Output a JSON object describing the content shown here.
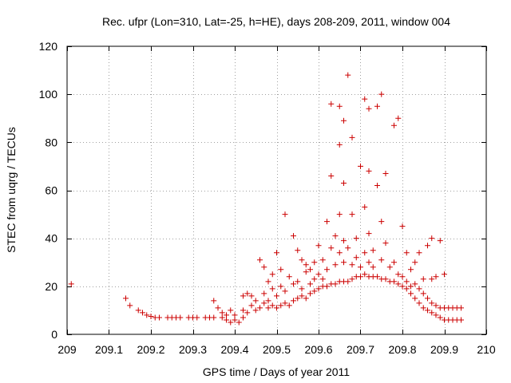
{
  "chart_data": {
    "type": "scatter",
    "title": "Rec. ufpr (Lon=310, Lat=-25, h=HE), days 208-209, 2011, window 004",
    "xlabel": "GPS time / Days of year 2011",
    "ylabel": "STEC from uqrg / TECUs",
    "xlim": [
      209,
      210
    ],
    "ylim": [
      0,
      120
    ],
    "xticks": [
      209,
      209.1,
      209.2,
      209.3,
      209.4,
      209.5,
      209.6,
      209.7,
      209.8,
      209.9,
      210
    ],
    "xtick_labels": [
      "209",
      "209.1",
      "209.2",
      "209.3",
      "209.4",
      "209.5",
      "209.6",
      "209.7",
      "209.8",
      "209.9",
      "210"
    ],
    "yticks": [
      0,
      20,
      40,
      60,
      80,
      100,
      120
    ],
    "ytick_labels": [
      "0",
      "20",
      "40",
      "60",
      "80",
      "100",
      "120"
    ],
    "grid": true,
    "marker": "+",
    "marker_color": "#cc0000",
    "series": [
      {
        "name": "STEC",
        "points": [
          [
            209.01,
            21
          ],
          [
            209.14,
            15
          ],
          [
            209.15,
            12
          ],
          [
            209.17,
            10
          ],
          [
            209.18,
            9
          ],
          [
            209.19,
            8
          ],
          [
            209.2,
            7.5
          ],
          [
            209.21,
            7
          ],
          [
            209.22,
            7
          ],
          [
            209.24,
            7
          ],
          [
            209.25,
            7
          ],
          [
            209.26,
            7
          ],
          [
            209.27,
            7
          ],
          [
            209.29,
            7
          ],
          [
            209.3,
            7
          ],
          [
            209.31,
            7
          ],
          [
            209.33,
            7
          ],
          [
            209.34,
            7
          ],
          [
            209.35,
            7
          ],
          [
            209.35,
            14
          ],
          [
            209.36,
            11
          ],
          [
            209.37,
            9
          ],
          [
            209.37,
            7
          ],
          [
            209.38,
            8
          ],
          [
            209.38,
            6
          ],
          [
            209.39,
            10
          ],
          [
            209.39,
            5
          ],
          [
            209.4,
            8
          ],
          [
            209.4,
            6
          ],
          [
            209.41,
            5
          ],
          [
            209.42,
            7
          ],
          [
            209.42,
            10
          ],
          [
            209.42,
            16
          ],
          [
            209.43,
            9
          ],
          [
            209.43,
            17
          ],
          [
            209.44,
            12
          ],
          [
            209.44,
            16
          ],
          [
            209.45,
            10
          ],
          [
            209.45,
            14
          ],
          [
            209.46,
            11
          ],
          [
            209.46,
            31
          ],
          [
            209.47,
            13
          ],
          [
            209.47,
            17
          ],
          [
            209.47,
            28
          ],
          [
            209.48,
            11
          ],
          [
            209.48,
            22
          ],
          [
            209.48,
            14
          ],
          [
            209.49,
            12
          ],
          [
            209.49,
            19
          ],
          [
            209.49,
            25
          ],
          [
            209.5,
            11
          ],
          [
            209.5,
            16
          ],
          [
            209.5,
            34
          ],
          [
            209.51,
            12
          ],
          [
            209.51,
            20
          ],
          [
            209.51,
            27
          ],
          [
            209.52,
            13
          ],
          [
            209.52,
            18
          ],
          [
            209.52,
            50
          ],
          [
            209.53,
            12
          ],
          [
            209.53,
            24
          ],
          [
            209.54,
            14
          ],
          [
            209.54,
            21
          ],
          [
            209.54,
            41
          ],
          [
            209.55,
            15
          ],
          [
            209.55,
            22
          ],
          [
            209.55,
            35
          ],
          [
            209.56,
            16
          ],
          [
            209.56,
            19
          ],
          [
            209.56,
            31
          ],
          [
            209.57,
            15
          ],
          [
            209.57,
            26
          ],
          [
            209.57,
            29
          ],
          [
            209.58,
            17
          ],
          [
            209.58,
            21
          ],
          [
            209.58,
            27
          ],
          [
            209.59,
            18
          ],
          [
            209.59,
            23
          ],
          [
            209.59,
            30
          ],
          [
            209.6,
            19
          ],
          [
            209.6,
            25
          ],
          [
            209.6,
            37
          ],
          [
            209.61,
            20
          ],
          [
            209.61,
            23
          ],
          [
            209.61,
            31
          ],
          [
            209.62,
            20
          ],
          [
            209.62,
            27
          ],
          [
            209.62,
            47
          ],
          [
            209.63,
            21
          ],
          [
            209.63,
            36
          ],
          [
            209.63,
            66
          ],
          [
            209.63,
            96
          ],
          [
            209.64,
            21
          ],
          [
            209.64,
            29
          ],
          [
            209.64,
            41
          ],
          [
            209.65,
            22
          ],
          [
            209.65,
            34
          ],
          [
            209.65,
            50
          ],
          [
            209.65,
            79
          ],
          [
            209.65,
            95
          ],
          [
            209.66,
            22
          ],
          [
            209.66,
            30
          ],
          [
            209.66,
            39
          ],
          [
            209.66,
            63
          ],
          [
            209.66,
            89
          ],
          [
            209.67,
            108
          ],
          [
            209.67,
            22
          ],
          [
            209.67,
            36
          ],
          [
            209.68,
            23
          ],
          [
            209.68,
            29
          ],
          [
            209.68,
            50
          ],
          [
            209.68,
            82
          ],
          [
            209.69,
            24
          ],
          [
            209.69,
            32
          ],
          [
            209.69,
            40
          ],
          [
            209.7,
            24
          ],
          [
            209.7,
            28
          ],
          [
            209.7,
            70
          ],
          [
            209.71,
            25
          ],
          [
            209.71,
            34
          ],
          [
            209.71,
            53
          ],
          [
            209.71,
            98
          ],
          [
            209.72,
            24
          ],
          [
            209.72,
            30
          ],
          [
            209.72,
            42
          ],
          [
            209.72,
            68
          ],
          [
            209.72,
            94
          ],
          [
            209.73,
            24
          ],
          [
            209.73,
            28
          ],
          [
            209.73,
            35
          ],
          [
            209.74,
            24
          ],
          [
            209.74,
            62
          ],
          [
            209.74,
            95
          ],
          [
            209.75,
            23
          ],
          [
            209.75,
            31
          ],
          [
            209.75,
            47
          ],
          [
            209.75,
            100
          ],
          [
            209.76,
            23
          ],
          [
            209.76,
            38
          ],
          [
            209.76,
            67
          ],
          [
            209.77,
            22
          ],
          [
            209.77,
            28
          ],
          [
            209.78,
            22
          ],
          [
            209.78,
            30
          ],
          [
            209.78,
            87
          ],
          [
            209.79,
            21
          ],
          [
            209.79,
            25
          ],
          [
            209.79,
            90
          ],
          [
            209.8,
            20
          ],
          [
            209.8,
            24
          ],
          [
            209.8,
            45
          ],
          [
            209.81,
            19
          ],
          [
            209.81,
            22
          ],
          [
            209.81,
            34
          ],
          [
            209.82,
            17
          ],
          [
            209.82,
            20
          ],
          [
            209.82,
            27
          ],
          [
            209.83,
            15
          ],
          [
            209.83,
            21
          ],
          [
            209.83,
            30
          ],
          [
            209.84,
            13
          ],
          [
            209.84,
            19
          ],
          [
            209.84,
            34
          ],
          [
            209.85,
            11
          ],
          [
            209.85,
            17
          ],
          [
            209.85,
            23
          ],
          [
            209.86,
            10
          ],
          [
            209.86,
            15
          ],
          [
            209.86,
            37
          ],
          [
            209.87,
            9
          ],
          [
            209.87,
            13
          ],
          [
            209.87,
            23
          ],
          [
            209.87,
            40
          ],
          [
            209.88,
            8
          ],
          [
            209.88,
            12
          ],
          [
            209.88,
            24
          ],
          [
            209.89,
            7
          ],
          [
            209.89,
            11
          ],
          [
            209.89,
            39
          ],
          [
            209.9,
            6
          ],
          [
            209.9,
            11
          ],
          [
            209.9,
            25
          ],
          [
            209.91,
            6
          ],
          [
            209.91,
            11
          ],
          [
            209.92,
            6
          ],
          [
            209.92,
            11
          ],
          [
            209.93,
            6
          ],
          [
            209.93,
            11
          ],
          [
            209.94,
            6
          ],
          [
            209.94,
            11
          ]
        ]
      }
    ]
  }
}
